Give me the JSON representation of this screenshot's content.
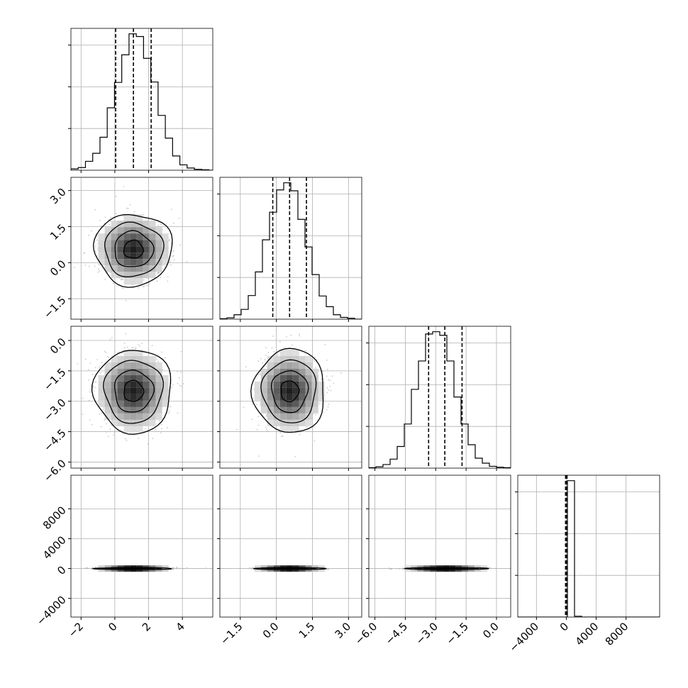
{
  "chart_data": {
    "type": "corner",
    "title": "",
    "parameters": 4,
    "grid": true,
    "quantiles": [
      0.16,
      0.5,
      0.84
    ],
    "axes": [
      {
        "index": 0,
        "range": [
          -2.6,
          5.8
        ],
        "ticks": [
          -2,
          0,
          2,
          4
        ],
        "tick_labels": [
          "−2",
          "0",
          "2",
          "4"
        ],
        "quantile_values": [
          0.05,
          1.1,
          2.15
        ],
        "hist": {
          "bin_edges": [
            -2.6,
            -2.17,
            -1.74,
            -1.31,
            -0.88,
            -0.45,
            -0.02,
            0.41,
            0.84,
            1.27,
            1.7,
            2.13,
            2.56,
            2.99,
            3.42,
            3.85,
            4.28,
            4.71,
            5.14,
            5.57,
            6.0
          ],
          "counts": [
            3,
            6,
            20,
            38,
            74,
            140,
            197,
            259,
            306,
            300,
            251,
            198,
            123,
            72,
            32,
            12,
            5,
            2,
            1,
            0
          ]
        }
      },
      {
        "index": 1,
        "range": [
          -2.35,
          3.55
        ],
        "ticks": [
          -1.5,
          0.0,
          1.5,
          3.0
        ],
        "tick_labels": [
          "−1.5",
          "0.0",
          "1.5",
          "3.0"
        ],
        "quantile_values": [
          -0.15,
          0.55,
          1.25
        ],
        "hist": {
          "bin_edges": [
            -2.35,
            -2.055,
            -1.76,
            -1.465,
            -1.17,
            -0.875,
            -0.58,
            -0.285,
            0.01,
            0.305,
            0.6,
            0.895,
            1.19,
            1.485,
            1.78,
            2.075,
            2.37,
            2.665,
            2.96,
            3.255,
            3.55
          ],
          "counts": [
            1,
            3,
            10,
            22,
            53,
            106,
            178,
            240,
            290,
            306,
            288,
            224,
            162,
            100,
            52,
            28,
            10,
            4,
            2,
            0
          ]
        }
      },
      {
        "index": 2,
        "range": [
          -6.3,
          0.7
        ],
        "ticks": [
          -6.0,
          -4.5,
          -3.0,
          -1.5,
          0.0
        ],
        "tick_labels": [
          "−6.0",
          "−4.5",
          "−3.0",
          "−1.5",
          "0.0"
        ],
        "quantile_values": [
          -3.35,
          -2.55,
          -1.7
        ],
        "hist": {
          "bin_edges": [
            -6.3,
            -5.95,
            -5.6,
            -5.25,
            -4.9,
            -4.55,
            -4.2,
            -3.85,
            -3.5,
            -3.15,
            -2.8,
            -2.45,
            -2.1,
            -1.75,
            -1.4,
            -1.05,
            -0.7,
            -0.35,
            0.0,
            0.35,
            0.7
          ],
          "counts": [
            1,
            3,
            8,
            20,
            48,
            98,
            175,
            238,
            298,
            303,
            295,
            238,
            158,
            98,
            52,
            22,
            11,
            4,
            2,
            1
          ]
        }
      },
      {
        "index": 3,
        "range": [
          -6500,
          12500
        ],
        "ticks": [
          -4000,
          0,
          4000,
          8000
        ],
        "tick_labels": [
          "−4000",
          "0",
          "4000",
          "8000"
        ],
        "quantile_values": [
          -100,
          0,
          100
        ],
        "hist": {
          "bin_edges": [
            -6500,
            -5550,
            -4600,
            -3650,
            -2700,
            -1750,
            -800,
            150,
            1100,
            2050,
            3000,
            3950,
            4900,
            5850,
            6800,
            7750,
            8700,
            9650,
            10600,
            11550,
            12500
          ],
          "counts": [
            0,
            0,
            0,
            0,
            0,
            0,
            0,
            9900,
            60,
            0,
            0,
            0,
            0,
            0,
            0,
            0,
            0,
            0,
            0,
            0
          ]
        }
      }
    ],
    "pairs": [
      {
        "x": 0,
        "y": 1,
        "center": [
          1.1,
          0.55
        ],
        "sigma": [
          1.0,
          0.65
        ]
      },
      {
        "x": 0,
        "y": 2,
        "center": [
          1.1,
          -2.5
        ],
        "sigma": [
          1.0,
          0.9
        ]
      },
      {
        "x": 1,
        "y": 2,
        "center": [
          0.55,
          -2.5
        ],
        "sigma": [
          0.65,
          0.9
        ]
      },
      {
        "x": 0,
        "y": 3,
        "center": [
          1.1,
          0
        ],
        "sigma": [
          1.0,
          60
        ]
      },
      {
        "x": 1,
        "y": 3,
        "center": [
          0.55,
          0
        ],
        "sigma": [
          0.65,
          60
        ]
      },
      {
        "x": 2,
        "y": 3,
        "center": [
          -2.5,
          0
        ],
        "sigma": [
          0.9,
          60
        ]
      }
    ],
    "contour_levels_sigma": [
      0.5,
      1.0,
      1.5,
      2.0
    ],
    "colors": {
      "line": "#000000",
      "grid": "#b0b0b0",
      "density_dark": "#1a1a1a",
      "points": "#b4b4b4"
    }
  }
}
